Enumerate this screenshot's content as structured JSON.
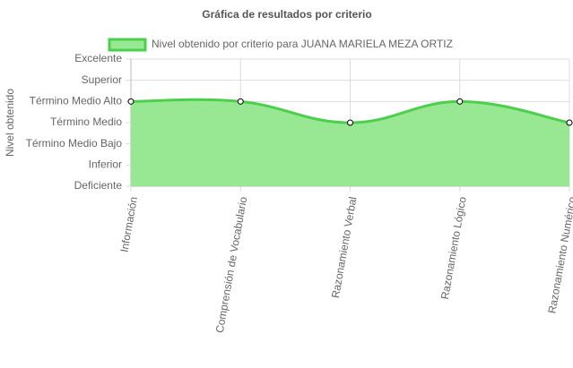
{
  "chart_data": {
    "type": "line",
    "title": "Gráfica de resultados por criterio",
    "ylabel": "Nivel obtenido",
    "categories": [
      "Información",
      "Comprensión de Vocabulario",
      "Razonamiento Verbal",
      "Razonamiento Lógico",
      "Razonamiento Numérico"
    ],
    "series": [
      {
        "name": "Nivel obtenido por criterio para JUANA MARIELA MEZA ORTIZ",
        "color": "#4bd04b",
        "fill": "#98e793",
        "values": [
          4,
          4,
          3,
          4,
          3
        ]
      }
    ],
    "ylim": [
      0,
      6
    ],
    "yticks": [
      {
        "value": 0,
        "label": "Deficiente"
      },
      {
        "value": 1,
        "label": "Inferior"
      },
      {
        "value": 2,
        "label": "Término Medio Bajo"
      },
      {
        "value": 3,
        "label": "Término Medio"
      },
      {
        "value": 4,
        "label": "Término Medio Alto"
      },
      {
        "value": 5,
        "label": "Superior"
      },
      {
        "value": 6,
        "label": "Excelente"
      }
    ],
    "grid": true,
    "legend": "top"
  }
}
